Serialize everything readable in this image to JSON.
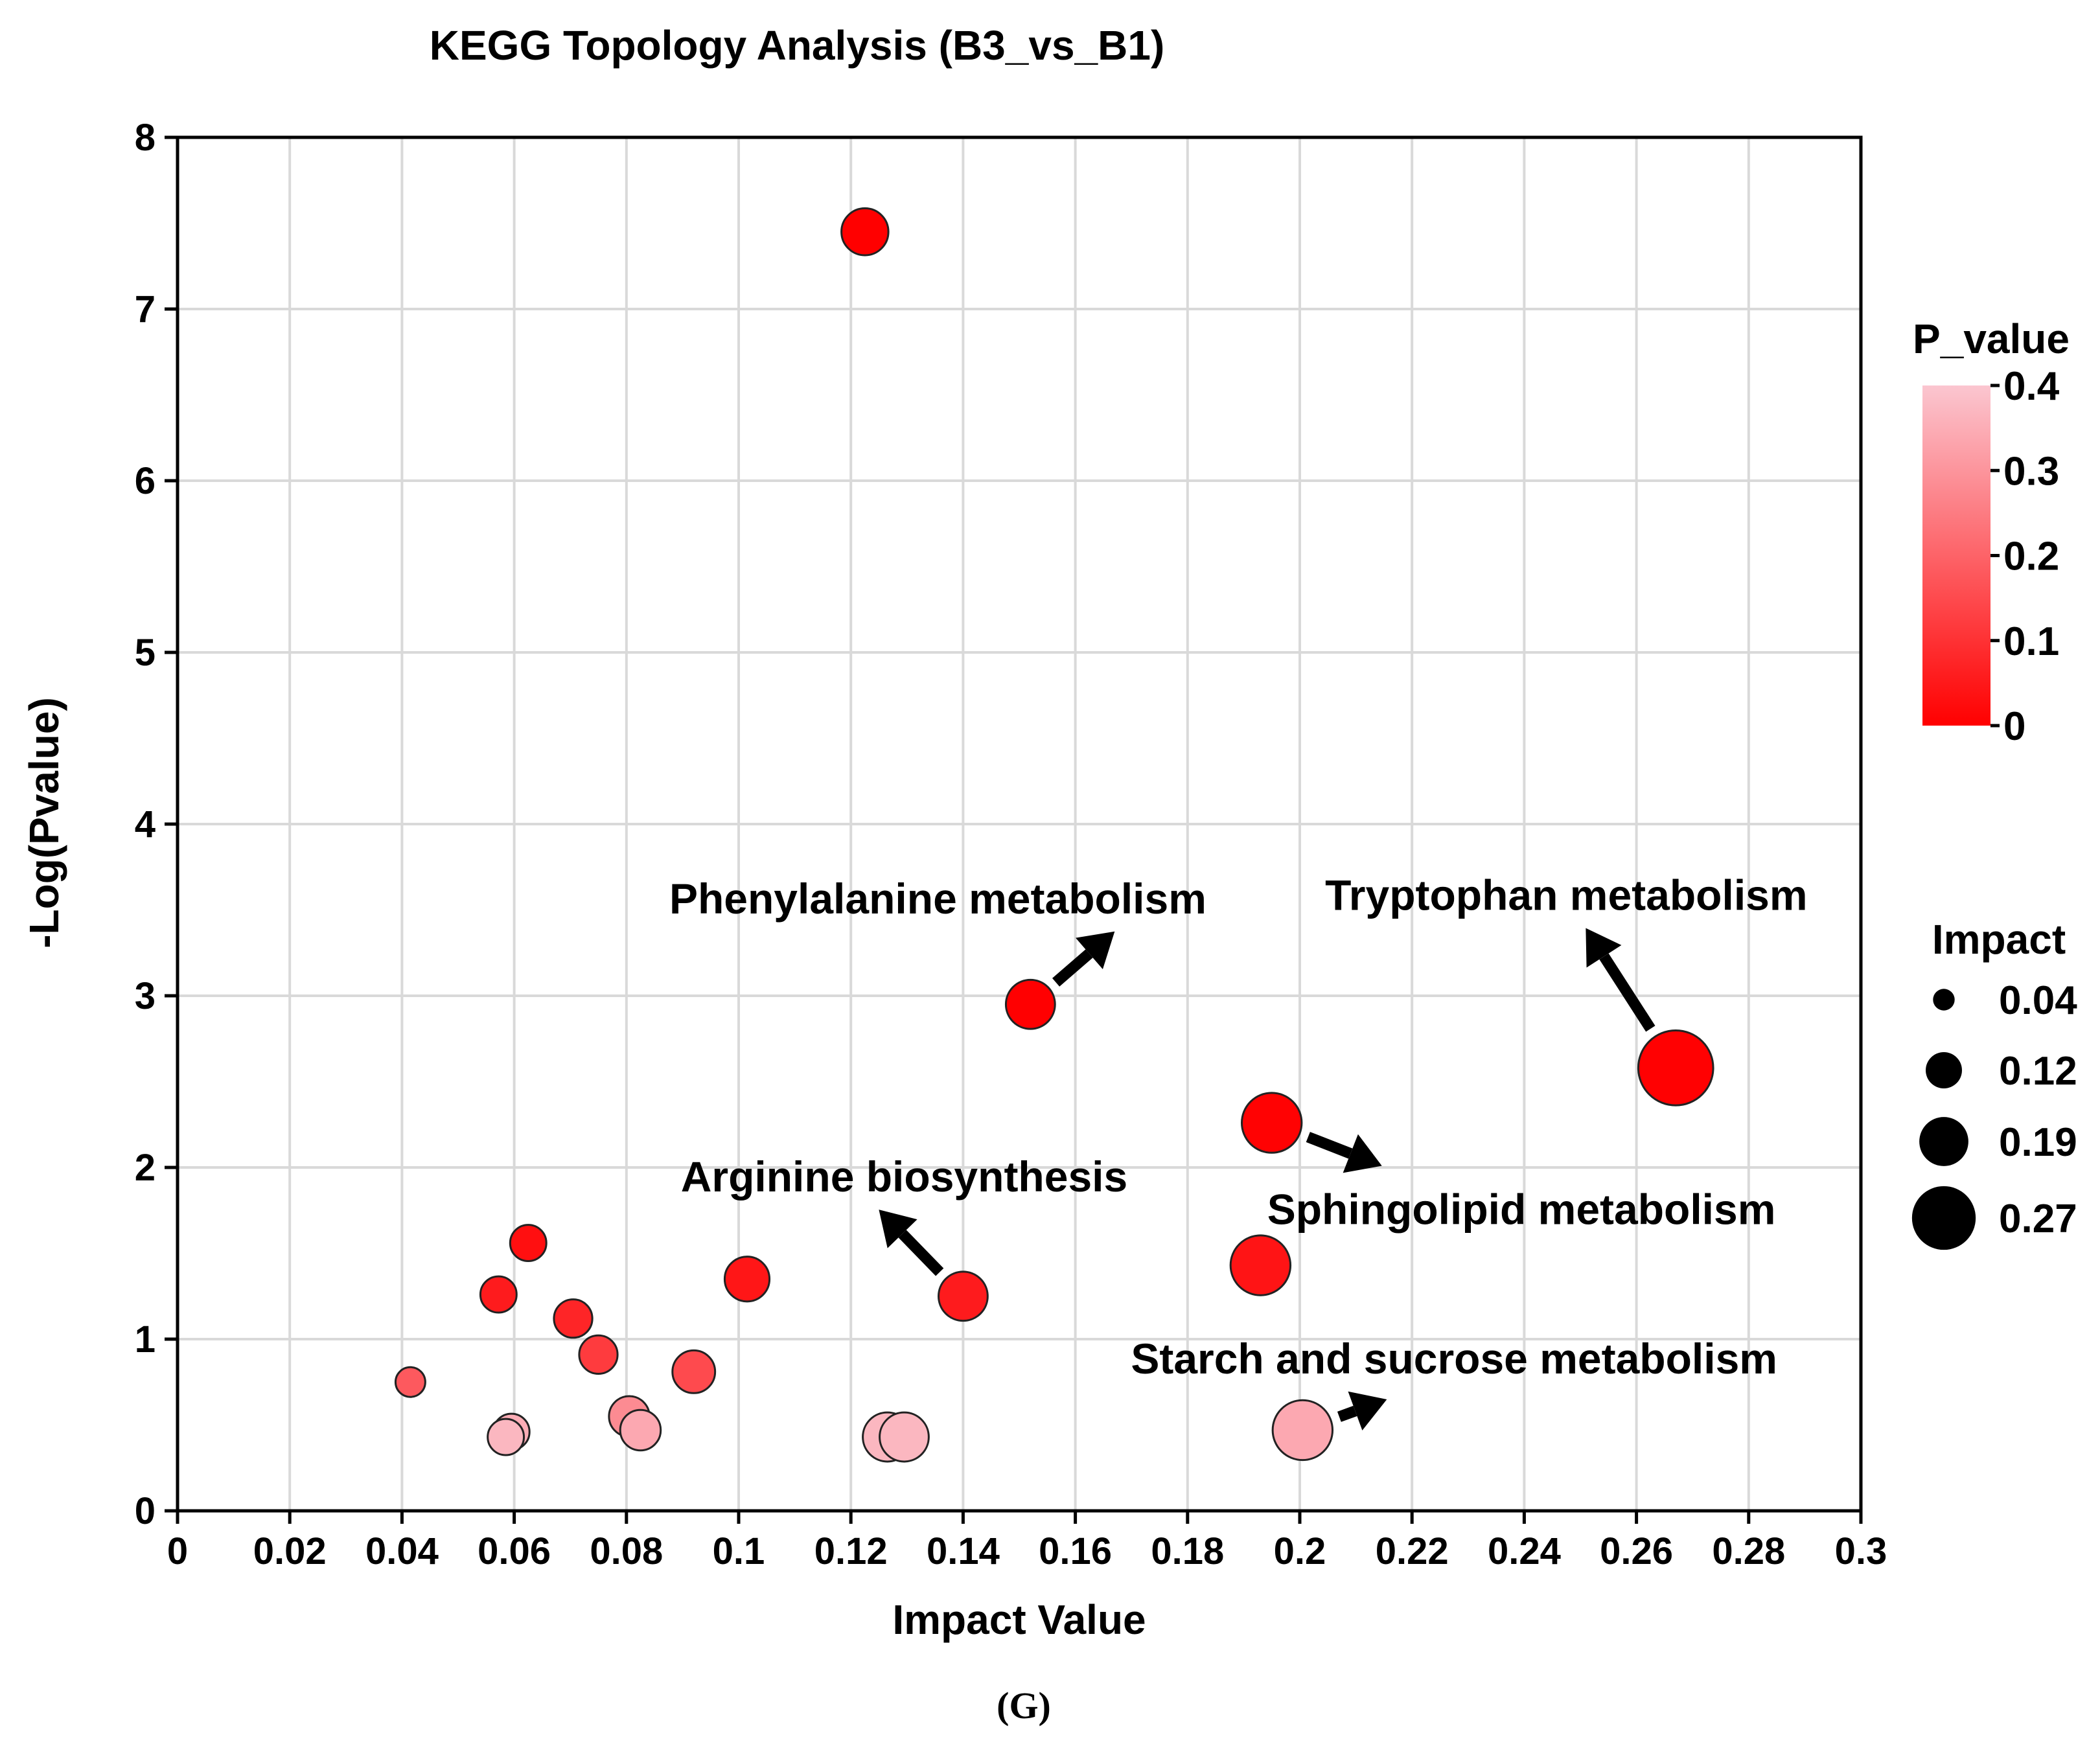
{
  "chart_data": {
    "type": "scatter",
    "title": "KEGG Topology Analysis (B3_vs_B1)",
    "xlabel": "Impact Value",
    "ylabel": "-Log(Pvalue)",
    "xlim": [
      0,
      0.3
    ],
    "ylim": [
      0,
      8
    ],
    "grid": true,
    "x_ticks": [
      0,
      0.02,
      0.04,
      0.06,
      0.08,
      0.1,
      0.12,
      0.14,
      0.16,
      0.18,
      0.2,
      0.22,
      0.24,
      0.26,
      0.28,
      0.3
    ],
    "x_tick_labels": [
      "0",
      "0.02",
      "0.04",
      "0.06",
      "0.08",
      "0.1",
      "0.12",
      "0.14",
      "0.16",
      "0.18",
      "0.2",
      "0.22",
      "0.24",
      "0.26",
      "0.28",
      "0.3"
    ],
    "y_ticks": [
      0,
      1,
      2,
      3,
      4,
      5,
      6,
      7,
      8
    ],
    "y_tick_labels": [
      "0",
      "1",
      "2",
      "3",
      "4",
      "5",
      "6",
      "7",
      "8"
    ],
    "points": [
      {
        "x": 0.1225,
        "y": 7.45,
        "impact": 0.14,
        "p": 0.0
      },
      {
        "x": 0.152,
        "y": 2.95,
        "impact": 0.15,
        "p": 0.001,
        "label": "Phenylalanine metabolism"
      },
      {
        "x": 0.267,
        "y": 2.58,
        "impact": 0.27,
        "p": 0.003,
        "label": "Tryptophan metabolism"
      },
      {
        "x": 0.195,
        "y": 2.26,
        "impact": 0.2,
        "p": 0.005,
        "label": "Sphingolipid metabolism"
      },
      {
        "x": 0.193,
        "y": 1.43,
        "impact": 0.2,
        "p": 0.04
      },
      {
        "x": 0.14,
        "y": 1.25,
        "impact": 0.15,
        "p": 0.055,
        "label": "Arginine biosynthesis"
      },
      {
        "x": 0.1015,
        "y": 1.35,
        "impact": 0.13,
        "p": 0.045
      },
      {
        "x": 0.0625,
        "y": 1.56,
        "impact": 0.09,
        "p": 0.03
      },
      {
        "x": 0.0572,
        "y": 1.26,
        "impact": 0.09,
        "p": 0.055
      },
      {
        "x": 0.0705,
        "y": 1.12,
        "impact": 0.1,
        "p": 0.075
      },
      {
        "x": 0.075,
        "y": 0.91,
        "impact": 0.1,
        "p": 0.12
      },
      {
        "x": 0.092,
        "y": 0.81,
        "impact": 0.12,
        "p": 0.15
      },
      {
        "x": 0.0415,
        "y": 0.75,
        "impact": 0.06,
        "p": 0.18
      },
      {
        "x": 0.0805,
        "y": 0.55,
        "impact": 0.11,
        "p": 0.28
      },
      {
        "x": 0.0825,
        "y": 0.47,
        "impact": 0.11,
        "p": 0.34
      },
      {
        "x": 0.0595,
        "y": 0.46,
        "impact": 0.09,
        "p": 0.35
      },
      {
        "x": 0.0585,
        "y": 0.43,
        "impact": 0.09,
        "p": 0.37
      },
      {
        "x": 0.1265,
        "y": 0.43,
        "impact": 0.15,
        "p": 0.37
      },
      {
        "x": 0.1295,
        "y": 0.43,
        "impact": 0.15,
        "p": 0.37
      },
      {
        "x": 0.2005,
        "y": 0.47,
        "impact": 0.2,
        "p": 0.34,
        "label": "Starch and sucrose metabolism"
      }
    ],
    "annotations": [
      {
        "text": "Phenylalanine metabolism",
        "x": 0.1355,
        "y": 3.48
      },
      {
        "text": "Tryptophan metabolism",
        "x": 0.2475,
        "y": 3.5
      },
      {
        "text": "Arginine biosynthesis",
        "x": 0.1295,
        "y": 1.86
      },
      {
        "text": "Sphingolipid metabolism",
        "x": 0.2395,
        "y": 1.67
      },
      {
        "text": "Starch and sucrose metabolism",
        "x": 0.2275,
        "y": 0.8
      }
    ],
    "color_legend": {
      "title": "P_value",
      "ticks": [
        0.4,
        0.3,
        0.2,
        0.1,
        0
      ],
      "tick_labels": [
        "0.4",
        "0.3",
        "0.2",
        "0.1",
        "0"
      ],
      "color_low": "#ff0000",
      "color_high": "#fbc6d0"
    },
    "size_legend": {
      "title": "Impact",
      "values": [
        0.04,
        0.12,
        0.19,
        0.27
      ],
      "labels": [
        "0.04",
        "0.12",
        "0.19",
        "0.27"
      ]
    },
    "panel_label": "(G)"
  }
}
